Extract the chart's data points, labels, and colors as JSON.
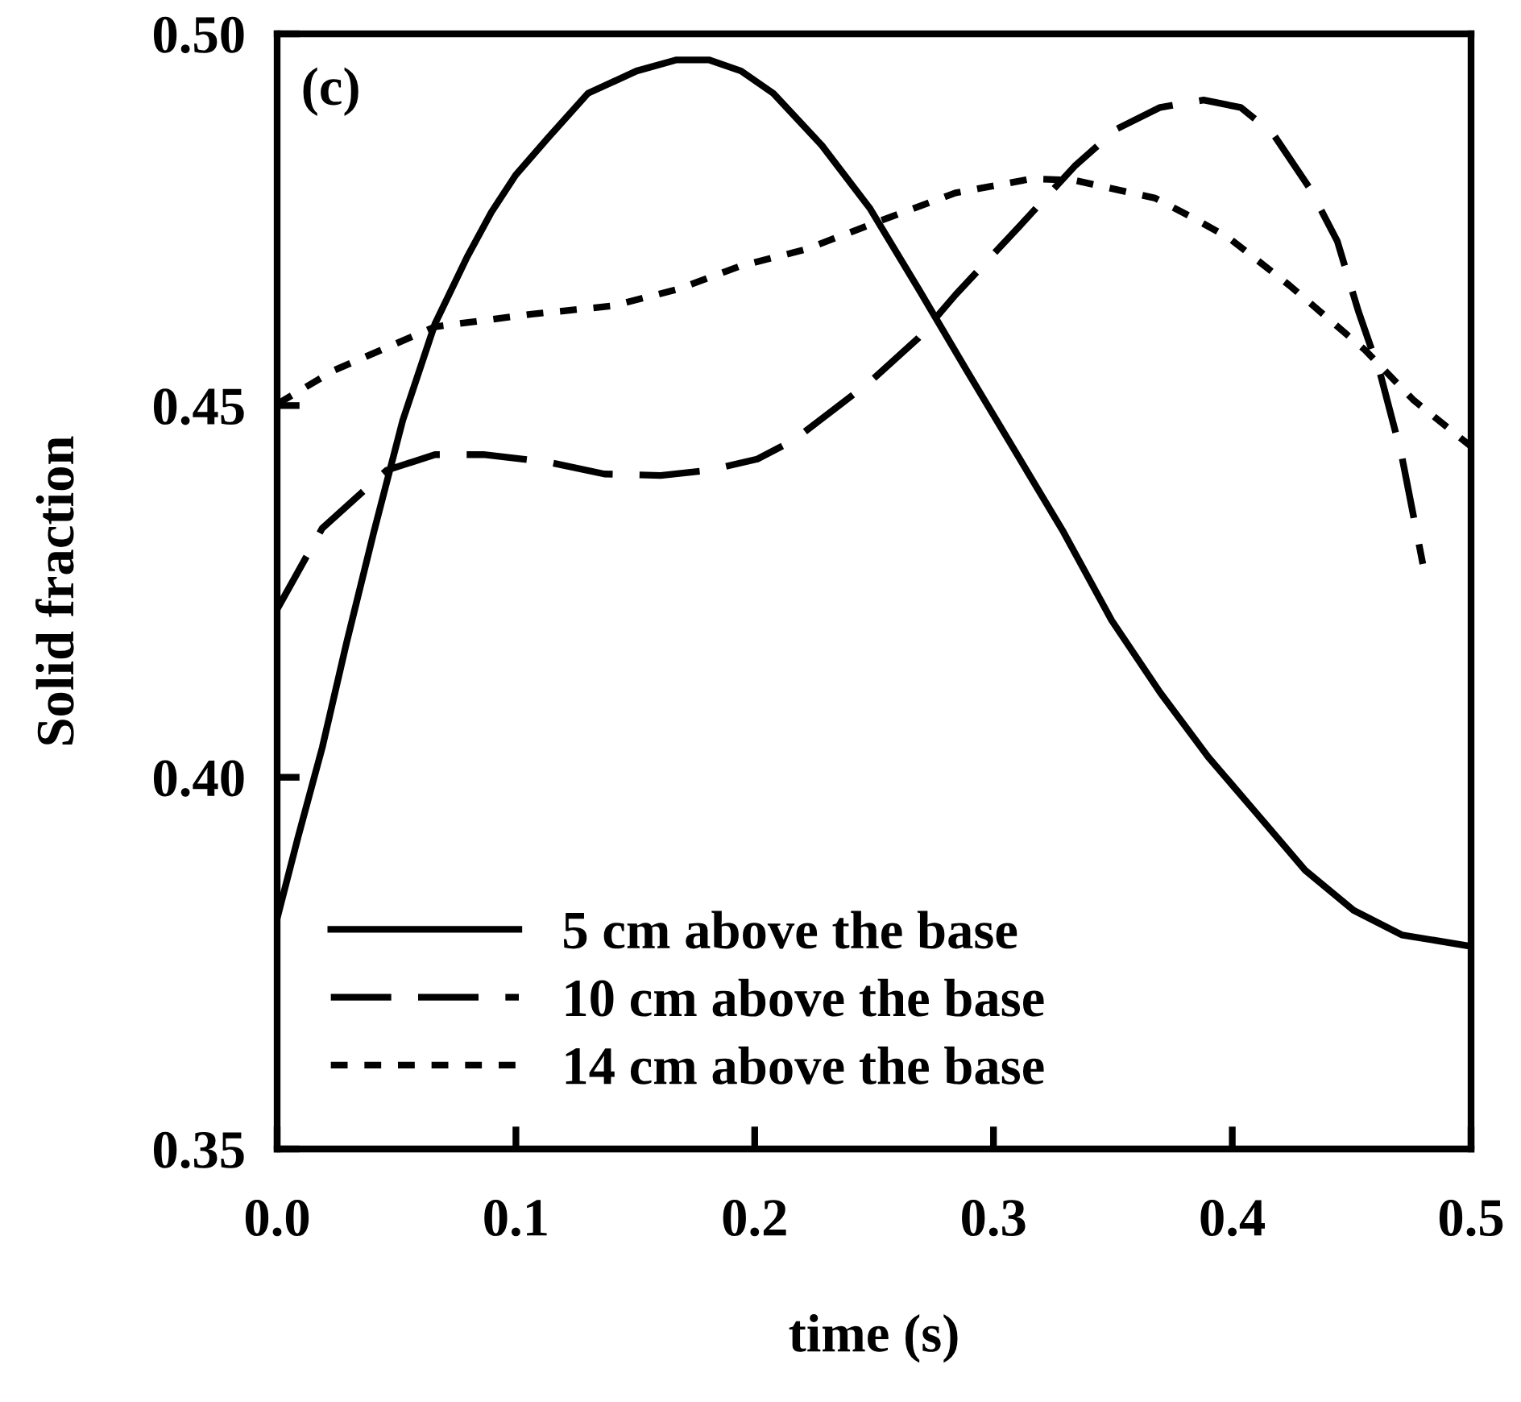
{
  "chart_data": {
    "type": "line",
    "xlabel": "time (s)",
    "ylabel": "Solid fraction",
    "annotations": [
      "(c)"
    ],
    "xlim": [
      0,
      0.5
    ],
    "xticks": [
      {
        "value": 0,
        "label": "0.0"
      },
      0.1,
      0.2,
      0.3,
      0.4,
      0.5
    ],
    "ylim": [
      0.35,
      0.5
    ],
    "yticks": [
      0.35,
      {
        "value": 0.4,
        "label": "0.40"
      },
      0.45,
      {
        "value": 0.5,
        "label": "0.50"
      }
    ],
    "grid": false,
    "legend": "bottom left",
    "marker": "none",
    "series": [
      {
        "name": "5 cm above the base",
        "color": "#000000",
        "line_style": "solid",
        "x": [
          0,
          0.0088,
          0.0189,
          0.029,
          0.0405,
          0.0526,
          0.0661,
          0.0796,
          0.0897,
          0.0999,
          0.1134,
          0.1302,
          0.1505,
          0.1673,
          0.1808,
          0.1943,
          0.2078,
          0.2281,
          0.2483,
          0.2686,
          0.2888,
          0.309,
          0.3293,
          0.3495,
          0.3698,
          0.39,
          0.4103,
          0.4305,
          0.4508,
          0.471,
          0.4993
        ],
        "values": [
          0.381,
          0.392,
          0.404,
          0.418,
          0.433,
          0.448,
          0.461,
          0.47,
          0.476,
          0.481,
          0.486,
          0.492,
          0.495,
          0.4965,
          0.4965,
          0.495,
          0.492,
          0.485,
          0.4765,
          0.4657,
          0.4547,
          0.4439,
          0.433,
          0.4211,
          0.4114,
          0.4027,
          0.3951,
          0.3875,
          0.3821,
          0.3788,
          0.3773
        ]
      },
      {
        "name": "10 cm above the base",
        "color": "#000000",
        "line_style": "dashed",
        "x": [
          0,
          0.0189,
          0.0459,
          0.0661,
          0.0864,
          0.1134,
          0.137,
          0.1606,
          0.1808,
          0.2011,
          0.2166,
          0.2483,
          0.2686,
          0.2841,
          0.3111,
          0.334,
          0.3516,
          0.3698,
          0.388,
          0.4035,
          0.417,
          0.4325,
          0.444,
          0.4528,
          0.4622,
          0.471,
          0.4798
        ],
        "values": [
          0.4226,
          0.4335,
          0.4413,
          0.4434,
          0.4434,
          0.4424,
          0.4408,
          0.4406,
          0.4413,
          0.4428,
          0.4454,
          0.4532,
          0.4591,
          0.4649,
          0.4742,
          0.4822,
          0.4872,
          0.4901,
          0.4911,
          0.4901,
          0.4866,
          0.4792,
          0.4721,
          0.4627,
          0.454,
          0.4432,
          0.4287
        ]
      },
      {
        "name": "14 cm above the base",
        "color": "#000000",
        "line_style": "dotted",
        "x": [
          0,
          0.0236,
          0.0661,
          0.1066,
          0.1403,
          0.1673,
          0.1943,
          0.2213,
          0.253,
          0.2841,
          0.3158,
          0.334,
          0.3677,
          0.3833,
          0.3988,
          0.4238,
          0.4555,
          0.4757,
          0.5
        ],
        "values": [
          0.4502,
          0.4547,
          0.4606,
          0.4623,
          0.4634,
          0.4656,
          0.4688,
          0.471,
          0.4749,
          0.4786,
          0.4805,
          0.4803,
          0.4779,
          0.4753,
          0.4725,
          0.4662,
          0.4575,
          0.4508,
          0.4445
        ]
      }
    ]
  }
}
